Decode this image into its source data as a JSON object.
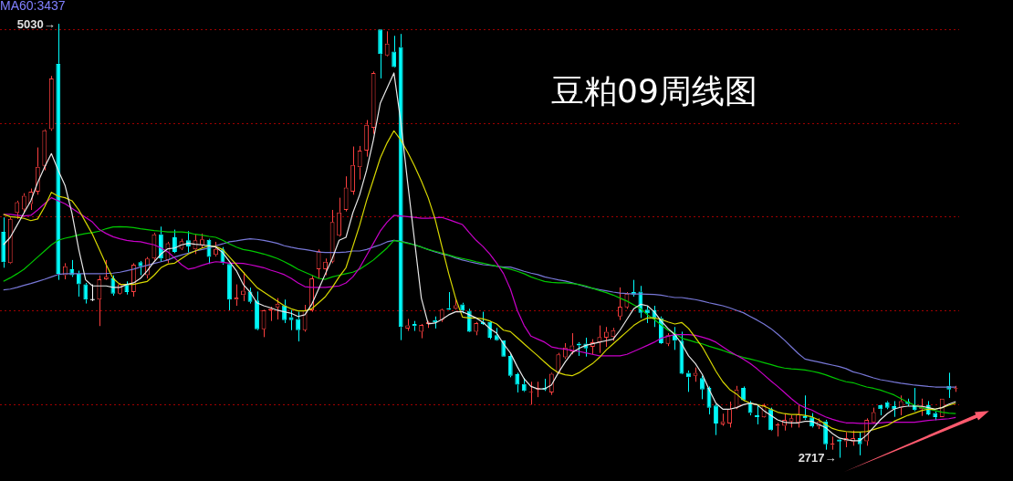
{
  "chart_data": {
    "type": "candlestick",
    "title": "豆粕09周线图",
    "annotations": [
      "5030→",
      "2717→",
      "MA60:3437"
    ],
    "categories": [
      null,
      null,
      null,
      null,
      null,
      null,
      null,
      null,
      null,
      null,
      null,
      null,
      null,
      null,
      null,
      null,
      null,
      null,
      null,
      null,
      null,
      null,
      null,
      null,
      null,
      null,
      null,
      null,
      null,
      null,
      null,
      null,
      null,
      null,
      null,
      null,
      null,
      null,
      null,
      null,
      null,
      null,
      null,
      null,
      null,
      null,
      null,
      null,
      null,
      null,
      null,
      null,
      null,
      null,
      null,
      null,
      null,
      null,
      null,
      null,
      null,
      null,
      null,
      null,
      null,
      null,
      null,
      null,
      null,
      null,
      null,
      null,
      null,
      null,
      null,
      null,
      null,
      null,
      null,
      null,
      null,
      null,
      null,
      null,
      null,
      null,
      null,
      null,
      null,
      null,
      null,
      null,
      null,
      null,
      null,
      null,
      null,
      null,
      null,
      null,
      null,
      null,
      null,
      null,
      null,
      null,
      null,
      null,
      null,
      null,
      null,
      null,
      null,
      null,
      null,
      null,
      null,
      null,
      null,
      null,
      null,
      null,
      null,
      null,
      null,
      null,
      null,
      null,
      null,
      null,
      null,
      null,
      null,
      null,
      null,
      null,
      null,
      null,
      null,
      null
    ],
    "ohlc": [
      [
        3921,
        3998,
        3730,
        3759
      ],
      [
        3754,
        3998,
        3750,
        3990
      ],
      [
        4022,
        4087,
        3990,
        4079
      ],
      [
        4041,
        4127,
        4022,
        4114
      ],
      [
        4070,
        4152,
        4038,
        4135
      ],
      [
        4135,
        4371,
        4119,
        4268
      ],
      [
        4273,
        4468,
        4249,
        4463
      ],
      [
        4468,
        4752,
        4460,
        4739
      ],
      [
        4817,
        5030,
        3665,
        3698
      ],
      [
        3690,
        3754,
        3668,
        3738
      ],
      [
        3722,
        3771,
        3681,
        3690
      ],
      [
        3698,
        3714,
        3576,
        3641
      ],
      [
        3641,
        3649,
        3539,
        3560
      ],
      [
        3560,
        3641,
        3552,
        3560
      ],
      [
        3560,
        3689,
        3419,
        3668
      ],
      [
        3668,
        3771,
        3665,
        3681
      ],
      [
        3673,
        3689,
        3581,
        3592
      ],
      [
        3592,
        3649,
        3587,
        3641
      ],
      [
        3641,
        3657,
        3587,
        3600
      ],
      [
        3600,
        3754,
        3576,
        3746
      ],
      [
        3759,
        3766,
        3690,
        3738
      ],
      [
        3690,
        3787,
        3673,
        3779
      ],
      [
        3779,
        3916,
        3771,
        3908
      ],
      [
        3908,
        3949,
        3762,
        3779
      ],
      [
        3771,
        3868,
        3754,
        3860
      ],
      [
        3892,
        3933,
        3808,
        3814
      ],
      [
        3831,
        3884,
        3824,
        3871
      ],
      [
        3876,
        3925,
        3811,
        3843
      ],
      [
        3827,
        3908,
        3803,
        3876
      ],
      [
        3850,
        3912,
        3835,
        3881
      ],
      [
        3879,
        3884,
        3750,
        3787
      ],
      [
        3798,
        3868,
        3790,
        3830
      ],
      [
        3827,
        3840,
        3746,
        3754
      ],
      [
        3750,
        3754,
        3503,
        3560
      ],
      [
        3560,
        3641,
        3527,
        3571
      ],
      [
        3584,
        3706,
        3552,
        3608
      ],
      [
        3603,
        3624,
        3539,
        3548
      ],
      [
        3555,
        3603,
        3397,
        3402
      ],
      [
        3402,
        3506,
        3360,
        3503
      ],
      [
        3503,
        3522,
        3446,
        3511
      ],
      [
        3519,
        3568,
        3454,
        3538
      ],
      [
        3530,
        3560,
        3435,
        3451
      ],
      [
        3466,
        3503,
        3397,
        3451
      ],
      [
        3457,
        3495,
        3337,
        3397
      ],
      [
        3397,
        3532,
        3389,
        3503
      ],
      [
        3503,
        3689,
        3495,
        3673
      ],
      [
        3722,
        3827,
        3673,
        3819
      ],
      [
        3722,
        3779,
        3690,
        3762
      ],
      [
        3762,
        4038,
        3754,
        3973
      ],
      [
        3900,
        4103,
        3895,
        4025
      ],
      [
        4038,
        4217,
        4030,
        4157
      ],
      [
        4135,
        4376,
        4119,
        4277
      ],
      [
        4265,
        4379,
        4200,
        4354
      ],
      [
        4354,
        4517,
        4322,
        4492
      ],
      [
        4476,
        4776,
        4444,
        4768
      ],
      [
        5000,
        5000,
        4739,
        4869
      ],
      [
        4861,
        4990,
        4857,
        4925
      ],
      [
        4882,
        4966,
        4797,
        4800
      ],
      [
        4906,
        4976,
        3344,
        3414
      ],
      [
        3406,
        3457,
        3393,
        3422
      ],
      [
        3430,
        3446,
        3393,
        3419
      ],
      [
        3389,
        3430,
        3354,
        3425
      ],
      [
        3430,
        3446,
        3409,
        3441
      ],
      [
        3451,
        3470,
        3406,
        3438
      ],
      [
        3451,
        3511,
        3441,
        3506
      ],
      [
        3514,
        3600,
        3504,
        3506
      ],
      [
        3511,
        3568,
        3506,
        3530
      ],
      [
        3535,
        3543,
        3487,
        3500
      ],
      [
        3500,
        3511,
        3386,
        3389
      ],
      [
        3389,
        3441,
        3370,
        3435
      ],
      [
        3441,
        3495,
        3425,
        3430
      ],
      [
        3441,
        3446,
        3349,
        3357
      ],
      [
        3370,
        3409,
        3341,
        3344
      ],
      [
        3344,
        3344,
        3256,
        3256
      ],
      [
        3260,
        3268,
        3146,
        3154
      ],
      [
        3162,
        3170,
        3065,
        3106
      ],
      [
        3110,
        3143,
        3068,
        3073
      ],
      [
        3065,
        3122,
        3000,
        3068
      ],
      [
        3081,
        3122,
        3040,
        3089
      ],
      [
        3089,
        3138,
        3073,
        3081
      ],
      [
        3065,
        3170,
        3052,
        3165
      ],
      [
        3170,
        3276,
        3165,
        3268
      ],
      [
        3252,
        3328,
        3244,
        3305
      ],
      [
        3284,
        3381,
        3268,
        3316
      ],
      [
        3325,
        3333,
        3260,
        3316
      ],
      [
        3325,
        3357,
        3256,
        3300
      ],
      [
        3308,
        3349,
        3268,
        3333
      ],
      [
        3333,
        3422,
        3276,
        3360
      ],
      [
        3357,
        3414,
        3308,
        3389
      ],
      [
        3360,
        3409,
        3340,
        3397
      ],
      [
        3470,
        3625,
        3451,
        3522
      ],
      [
        3519,
        3600,
        3511,
        3592
      ],
      [
        3600,
        3665,
        3576,
        3587
      ],
      [
        3603,
        3633,
        3462,
        3490
      ],
      [
        3506,
        3527,
        3435,
        3487
      ],
      [
        3503,
        3527,
        3414,
        3462
      ],
      [
        3462,
        3470,
        3324,
        3328
      ],
      [
        3324,
        3381,
        3312,
        3370
      ],
      [
        3373,
        3414,
        3292,
        3341
      ],
      [
        3341,
        3389,
        3162,
        3165
      ],
      [
        3170,
        3182,
        3068,
        3146
      ],
      [
        3154,
        3198,
        3122,
        3170
      ],
      [
        3141,
        3154,
        3029,
        3081
      ],
      [
        3089,
        3097,
        2948,
        2984
      ],
      [
        2995,
        3003,
        2838,
        2900
      ],
      [
        2895,
        2952,
        2887,
        2911
      ],
      [
        2900,
        3016,
        2878,
        2976
      ],
      [
        2984,
        3100,
        2976,
        3081
      ],
      [
        3089,
        3097,
        3019,
        3024
      ],
      [
        3008,
        3019,
        2943,
        2955
      ],
      [
        2943,
        2995,
        2895,
        2933
      ],
      [
        2932,
        3005,
        2930,
        2997
      ],
      [
        2976,
        2984,
        2860,
        2864
      ],
      [
        2887,
        2903,
        2830,
        2895
      ],
      [
        2887,
        2952,
        2862,
        2919
      ],
      [
        2911,
        2943,
        2878,
        2927
      ],
      [
        2906,
        3000,
        2878,
        2948
      ],
      [
        2938,
        3049,
        2919,
        2927
      ],
      [
        2932,
        2955,
        2878,
        2884
      ],
      [
        2884,
        2927,
        2870,
        2911
      ],
      [
        2911,
        2919,
        2760,
        2789
      ],
      [
        2786,
        2830,
        2760,
        2792
      ],
      [
        2814,
        2816,
        2717,
        2804
      ],
      [
        2805,
        2854,
        2773,
        2822
      ],
      [
        2803,
        2862,
        2781,
        2822
      ],
      [
        2822,
        2854,
        2730,
        2789
      ],
      [
        2805,
        2927,
        2781,
        2919
      ],
      [
        2906,
        2984,
        2900,
        2960
      ],
      [
        2997,
        3000,
        2943,
        2976
      ],
      [
        3013,
        3019,
        2976,
        2984
      ],
      [
        2992,
        3019,
        2935,
        2976
      ],
      [
        2984,
        3049,
        2943,
        3019
      ],
      [
        3016,
        3032,
        2992,
        3003
      ],
      [
        2997,
        3089,
        2965,
        2971
      ],
      [
        2976,
        3032,
        2940,
        2992
      ],
      [
        2997,
        3019,
        2943,
        2948
      ],
      [
        2955,
        2963,
        2917,
        2933
      ],
      [
        2933,
        3032,
        2933,
        3032
      ],
      [
        3100,
        3170,
        3036,
        3081
      ],
      [
        3086,
        3100,
        3068,
        3089
      ]
    ],
    "colors": [
      "#00ffff",
      "#ff4040",
      "#ff4040",
      "#ff4040",
      "#ff4040",
      "#ff4040",
      "#ff4040",
      "#ff4040",
      "#00ffff",
      "#ff4040",
      "#00ffff",
      "#00ffff",
      "#00ffff",
      "#ffffff",
      "#ff4040",
      "#ff4040",
      "#00ffff",
      "#ff4040",
      "#00ffff",
      "#ff4040",
      "#00ffff",
      "#ff4040",
      "#ff4040",
      "#00ffff",
      "#ff4040",
      "#00ffff",
      "#ff4040",
      "#00ffff",
      "#ff4040",
      "#ff4040",
      "#00ffff",
      "#ff4040",
      "#00ffff",
      "#00ffff",
      "#ff4040",
      "#ff4040",
      "#00ffff",
      "#00ffff",
      "#ff4040",
      "#ff4040",
      "#ff4040",
      "#00ffff",
      "#00ffff",
      "#00ffff",
      "#ff4040",
      "#ff4040",
      "#ff4040",
      "#ff4040",
      "#ff4040",
      "#ff4040",
      "#ff4040",
      "#ff4040",
      "#ff4040",
      "#ff4040",
      "#ff4040",
      "#00ffff",
      "#ff4040",
      "#00ffff",
      "#00ffff",
      "#ff4040",
      "#00ffff",
      "#ff4040",
      "#ff4040",
      "#00ffff",
      "#ff4040",
      "#00ffff",
      "#ff4040",
      "#00ffff",
      "#00ffff",
      "#ff4040",
      "#00ffff",
      "#00ffff",
      "#00ffff",
      "#00ffff",
      "#00ffff",
      "#00ffff",
      "#00ffff",
      "#ff4040",
      "#ff4040",
      "#00ffff",
      "#ff4040",
      "#ff4040",
      "#ff4040",
      "#ff4040",
      "#00ffff",
      "#00ffff",
      "#ff4040",
      "#ff4040",
      "#ff4040",
      "#ff4040",
      "#ff4040",
      "#ff4040",
      "#00ffff",
      "#00ffff",
      "#00ffff",
      "#00ffff",
      "#00ffff",
      "#ff4040",
      "#00ffff",
      "#00ffff",
      "#00ffff",
      "#ff4040",
      "#00ffff",
      "#00ffff",
      "#00ffff",
      "#ff4040",
      "#ff4040",
      "#ff4040",
      "#00ffff",
      "#00ffff",
      "#00ffff",
      "#ff4040",
      "#00ffff",
      "#ff4040",
      "#ff4040",
      "#ff4040",
      "#ff4040",
      "#00ffff",
      "#00ffff",
      "#ff4040",
      "#00ffff",
      "#ff4040",
      "#00ffff",
      "#ff4040",
      "#ff4040",
      "#00ffff",
      "#ff4040",
      "#ff4040",
      "#00ffff",
      "#00ffff",
      "#00ffff",
      "#ff4040",
      "#00ffff",
      "#00ffff",
      "#ff4040",
      "#00ffff",
      "#00ffff",
      "#ff4040",
      "#00ffff",
      "#ff4040"
    ],
    "series": [
      {
        "type": "line",
        "color": "#e8e8e8",
        "values": [
          3852,
          3892,
          3957,
          4022,
          4087,
          4184,
          4266,
          4338,
          4249,
          4168,
          4022,
          3827,
          3665,
          3633,
          3633,
          3633,
          3625,
          3625,
          3641,
          3649,
          3673,
          3714,
          3762,
          3803,
          3831,
          3835,
          3852,
          3860,
          3855,
          3852,
          3847,
          3840,
          3811,
          3762,
          3714,
          3641,
          3600,
          3543,
          3527,
          3516,
          3503,
          3495,
          3487,
          3470,
          3479,
          3535,
          3616,
          3698,
          3779,
          3876,
          3892,
          4022,
          4119,
          4249,
          4411,
          4606,
          4687,
          4768,
          4509,
          4184,
          3876,
          3568,
          3430,
          3435,
          3454,
          3479,
          3495,
          3495,
          3479,
          3462,
          3438,
          3406,
          3381,
          3324,
          3276,
          3203,
          3138,
          3097,
          3084,
          3084,
          3105,
          3170,
          3227,
          3276,
          3300,
          3316,
          3325,
          3333,
          3341,
          3349,
          3397,
          3454,
          3511,
          3535,
          3527,
          3495,
          3446,
          3406,
          3373,
          3324,
          3260,
          3219,
          3162,
          3081,
          3008,
          2976,
          2976,
          2984,
          3000,
          3008,
          3000,
          2968,
          2943,
          2919,
          2906,
          2903,
          2903,
          2911,
          2911,
          2895,
          2878,
          2846,
          2822,
          2814,
          2808,
          2808,
          2838,
          2878,
          2919,
          2952,
          2976,
          2987,
          2992,
          2992,
          2992,
          2984,
          2976,
          2984,
          3003,
          3016
        ]
      },
      {
        "type": "line",
        "color": "#d8d800",
        "values": [
          4014,
          4002,
          3998,
          3993,
          3981,
          3990,
          4054,
          4132,
          4111,
          4103,
          4087,
          4038,
          3973,
          3908,
          3827,
          3746,
          3673,
          3641,
          3641,
          3641,
          3649,
          3657,
          3690,
          3730,
          3749,
          3754,
          3779,
          3803,
          3819,
          3835,
          3847,
          3843,
          3827,
          3787,
          3746,
          3706,
          3665,
          3625,
          3600,
          3576,
          3552,
          3527,
          3511,
          3500,
          3500,
          3511,
          3543,
          3576,
          3625,
          3681,
          3730,
          3843,
          3957,
          4087,
          4200,
          4314,
          4395,
          4460,
          4411,
          4346,
          4273,
          4192,
          4103,
          3990,
          3843,
          3698,
          3568,
          3467,
          3462,
          3462,
          3457,
          3446,
          3430,
          3397,
          3389,
          3357,
          3324,
          3292,
          3260,
          3227,
          3195,
          3170,
          3159,
          3154,
          3170,
          3195,
          3219,
          3252,
          3292,
          3324,
          3357,
          3389,
          3422,
          3446,
          3462,
          3462,
          3454,
          3441,
          3430,
          3438,
          3406,
          3357,
          3308,
          3244,
          3178,
          3122,
          3081,
          3057,
          3024,
          3008,
          3000,
          2992,
          2976,
          2960,
          2952,
          2948,
          2948,
          2943,
          2935,
          2919,
          2895,
          2873,
          2862,
          2857,
          2854,
          2854,
          2857,
          2867,
          2878,
          2889,
          2911,
          2927,
          2943,
          2955,
          2968,
          2976,
          2976,
          2984,
          2997,
          3008
        ]
      },
      {
        "type": "line",
        "color": "#c800c8",
        "values": [
          4014,
          4014,
          4009,
          4006,
          4009,
          4038,
          4071,
          4103,
          4087,
          4071,
          4046,
          4022,
          3998,
          3973,
          3933,
          3912,
          3895,
          3884,
          3876,
          3871,
          3868,
          3860,
          3852,
          3835,
          3814,
          3782,
          3746,
          3722,
          3730,
          3743,
          3754,
          3762,
          3759,
          3754,
          3754,
          3753,
          3746,
          3738,
          3730,
          3717,
          3706,
          3693,
          3673,
          3649,
          3629,
          3625,
          3625,
          3625,
          3629,
          3633,
          3649,
          3681,
          3730,
          3795,
          3860,
          3925,
          3973,
          4009,
          4006,
          4002,
          3998,
          3994,
          3994,
          3996,
          3998,
          3986,
          3973,
          3960,
          3917,
          3876,
          3843,
          3803,
          3754,
          3698,
          3616,
          3503,
          3422,
          3365,
          3349,
          3333,
          3308,
          3300,
          3295,
          3289,
          3284,
          3276,
          3268,
          3260,
          3260,
          3260,
          3260,
          3268,
          3284,
          3300,
          3316,
          3333,
          3354,
          3365,
          3373,
          3373,
          3373,
          3370,
          3360,
          3349,
          3333,
          3308,
          3284,
          3263,
          3243,
          3219,
          3191,
          3159,
          3127,
          3097,
          3065,
          3032,
          3003,
          2984,
          2971,
          2952,
          2935,
          2922,
          2911,
          2903,
          2903,
          2900,
          2900,
          2900,
          2903,
          2906,
          2906,
          2906,
          2906,
          2906,
          2911,
          2916,
          2919,
          2922,
          2925,
          2932
        ]
      },
      {
        "type": "line",
        "color": "#00c800",
        "values": [
          3657,
          3676,
          3698,
          3722,
          3754,
          3787,
          3819,
          3852,
          3876,
          3887,
          3895,
          3905,
          3912,
          3917,
          3925,
          3938,
          3947,
          3949,
          3947,
          3944,
          3938,
          3933,
          3928,
          3925,
          3921,
          3921,
          3921,
          3917,
          3908,
          3904,
          3897,
          3892,
          3876,
          3857,
          3840,
          3827,
          3821,
          3812,
          3803,
          3792,
          3779,
          3762,
          3743,
          3722,
          3706,
          3690,
          3673,
          3668,
          3681,
          3690,
          3698,
          3706,
          3722,
          3746,
          3771,
          3803,
          3835,
          3876,
          3868,
          3860,
          3852,
          3840,
          3827,
          3818,
          3808,
          3798,
          3787,
          3779,
          3771,
          3762,
          3754,
          3746,
          3738,
          3730,
          3722,
          3711,
          3698,
          3681,
          3668,
          3657,
          3652,
          3649,
          3649,
          3646,
          3641,
          3633,
          3620,
          3608,
          3597,
          3584,
          3568,
          3552,
          3532,
          3511,
          3479,
          3454,
          3425,
          3397,
          3381,
          3354,
          3344,
          3333,
          3324,
          3311,
          3300,
          3289,
          3276,
          3263,
          3252,
          3243,
          3234,
          3224,
          3214,
          3203,
          3195,
          3191,
          3188,
          3185,
          3178,
          3170,
          3159,
          3146,
          3133,
          3122,
          3117,
          3105,
          3094,
          3087,
          3078,
          3065,
          3052,
          3032,
          3013,
          2997,
          2984,
          2976,
          2968,
          2960,
          2955,
          2952
        ]
      },
      {
        "type": "line",
        "color": "#7878d8",
        "values": [
          3612,
          3616,
          3625,
          3636,
          3646,
          3657,
          3668,
          3681,
          3694,
          3698,
          3698,
          3698,
          3698,
          3698,
          3698,
          3699,
          3701,
          3706,
          3714,
          3722,
          3733,
          3743,
          3753,
          3762,
          3771,
          3787,
          3798,
          3808,
          3819,
          3827,
          3835,
          3847,
          3857,
          3868,
          3873,
          3879,
          3884,
          3881,
          3876,
          3868,
          3860,
          3847,
          3839,
          3832,
          3827,
          3821,
          3814,
          3811,
          3811,
          3811,
          3814,
          3819,
          3819,
          3827,
          3840,
          3852,
          3868,
          3876,
          3871,
          3863,
          3852,
          3840,
          3827,
          3814,
          3803,
          3795,
          3782,
          3771,
          3762,
          3754,
          3746,
          3743,
          3738,
          3733,
          3733,
          3722,
          3711,
          3701,
          3693,
          3681,
          3673,
          3665,
          3659,
          3649,
          3639,
          3628,
          3620,
          3613,
          3607,
          3600,
          3595,
          3592,
          3590,
          3590,
          3589,
          3587,
          3584,
          3577,
          3571,
          3571,
          3565,
          3560,
          3552,
          3543,
          3535,
          3527,
          3516,
          3503,
          3490,
          3470,
          3451,
          3430,
          3406,
          3376,
          3344,
          3308,
          3273,
          3243,
          3235,
          3227,
          3219,
          3211,
          3203,
          3192,
          3175,
          3166,
          3154,
          3143,
          3133,
          3127,
          3120,
          3114,
          3109,
          3104,
          3101,
          3097,
          3094,
          3094,
          3094,
          3094
        ]
      }
    ],
    "ylim": [
      2593,
      5157
    ],
    "yticks": [
      {
        "value": 3000,
        "label": null
      },
      {
        "value": 3500,
        "label": null
      },
      {
        "value": 4000,
        "label": null
      },
      {
        "value": 4500,
        "label": null
      },
      {
        "value": 5000,
        "label": null
      }
    ],
    "grid": "y"
  }
}
